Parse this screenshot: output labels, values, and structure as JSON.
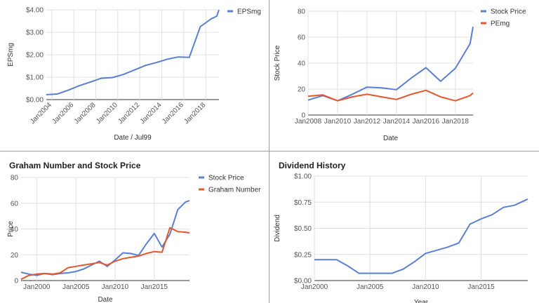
{
  "colors": {
    "blue": "#5b7fd3",
    "red": "#e4572e",
    "grid": "#e0e0e0",
    "axis": "#333333",
    "tick": "#555555"
  },
  "chart_data": [
    {
      "type": "line",
      "title": "",
      "xlabel": "Date / Jul99",
      "ylabel": "EPSmg",
      "legend": "right",
      "grid": true,
      "xlim": [
        2003.5,
        2019.2
      ],
      "ylim": [
        0,
        4
      ],
      "x_ticks": [
        2004,
        2006,
        2008,
        2010,
        2012,
        2014,
        2016,
        2018
      ],
      "x_tick_labels": [
        "Jan2004",
        "Jan2006",
        "Jan2008",
        "Jan2010",
        "Jan2012",
        "Jan2014",
        "Jan2016",
        "Jan2018"
      ],
      "y_ticks": [
        0,
        1,
        2,
        3,
        4
      ],
      "y_tick_labels": [
        "$0.00",
        "$1.00",
        "$2.00",
        "$3.00",
        "$4.00"
      ],
      "series": [
        {
          "name": "EPSmg",
          "color": "#5b7fd3",
          "x": [
            2003.5,
            2004.5,
            2005.5,
            2006.5,
            2007.5,
            2008.5,
            2009.5,
            2010.5,
            2011.5,
            2012.5,
            2013.5,
            2014.5,
            2015.5,
            2016.5,
            2017.5,
            2018.5,
            2019.0,
            2019.2
          ],
          "y": [
            0.22,
            0.25,
            0.42,
            0.62,
            0.78,
            0.95,
            0.98,
            1.12,
            1.32,
            1.52,
            1.65,
            1.8,
            1.9,
            1.88,
            3.25,
            3.6,
            3.72,
            4.0
          ]
        }
      ]
    },
    {
      "type": "line",
      "title": "",
      "xlabel": "Date",
      "ylabel": "Stock Price",
      "legend": "right",
      "grid": true,
      "xlim": [
        2008,
        2019.2
      ],
      "ylim": [
        0,
        80
      ],
      "x_ticks": [
        2008,
        2010,
        2012,
        2014,
        2016,
        2018
      ],
      "x_tick_labels": [
        "Jan2008",
        "Jan2010",
        "Jan2012",
        "Jan2014",
        "Jan2016",
        "Jan2018"
      ],
      "y_ticks": [
        0,
        20,
        40,
        60,
        80
      ],
      "y_tick_labels": [
        "0",
        "20",
        "40",
        "60",
        "80"
      ],
      "series": [
        {
          "name": "Stock Price",
          "color": "#5b7fd3",
          "x": [
            2008,
            2009,
            2010,
            2011,
            2012,
            2013,
            2014,
            2015,
            2016,
            2017,
            2018,
            2019,
            2019.2
          ],
          "y": [
            11.5,
            15,
            11,
            16,
            21.5,
            21,
            19.5,
            28.5,
            36.5,
            26,
            36,
            55,
            68
          ]
        },
        {
          "name": "PEmg",
          "color": "#e4572e",
          "x": [
            2008,
            2009,
            2010,
            2011,
            2012,
            2013,
            2014,
            2015,
            2016,
            2017,
            2018,
            2019,
            2019.2
          ],
          "y": [
            14.5,
            15.5,
            11,
            14,
            16,
            14,
            12,
            16,
            19,
            14,
            11,
            15,
            17
          ]
        }
      ]
    },
    {
      "type": "line",
      "title": "Graham Number and Stock Price",
      "xlabel": "Date",
      "ylabel": "Price",
      "legend": "right",
      "grid": true,
      "xlim": [
        1998,
        2019.5
      ],
      "ylim": [
        0,
        80
      ],
      "x_ticks": [
        2000,
        2005,
        2010,
        2015
      ],
      "x_tick_labels": [
        "Jan2000",
        "Jan2005",
        "Jan2010",
        "Jan2015"
      ],
      "y_ticks": [
        0,
        20,
        40,
        60,
        80
      ],
      "y_tick_labels": [
        "0",
        "20",
        "40",
        "60",
        "80"
      ],
      "series": [
        {
          "name": "Stock Price",
          "color": "#5b7fd3",
          "x": [
            1998,
            1999,
            2000,
            2001,
            2002,
            2003,
            2004,
            2005,
            2006,
            2007,
            2008,
            2009,
            2010,
            2011,
            2012,
            2013,
            2014,
            2015,
            2016,
            2017,
            2018,
            2019,
            2019.5
          ],
          "y": [
            6.5,
            5,
            4,
            5.5,
            4.5,
            5.5,
            6,
            7,
            9,
            12,
            15,
            11,
            16,
            21.5,
            21,
            19.5,
            28.5,
            36.5,
            26,
            36,
            55,
            61,
            62
          ]
        },
        {
          "name": "Graham Number",
          "color": "#e4572e",
          "x": [
            1998,
            1999,
            2000,
            2001,
            2002,
            2003,
            2004,
            2005,
            2006,
            2007,
            2008,
            2009,
            2010,
            2011,
            2012,
            2013,
            2014,
            2015,
            2016,
            2017,
            2018,
            2019,
            2019.5
          ],
          "y": [
            1,
            4,
            5,
            5.5,
            5,
            6,
            10,
            11,
            12,
            13,
            14,
            12,
            15,
            17,
            18,
            19,
            21,
            22.5,
            22,
            41,
            38,
            37.5,
            37
          ]
        }
      ]
    },
    {
      "type": "line",
      "title": "Dividend History",
      "xlabel": "Year",
      "ylabel": "Dividend",
      "legend": "none",
      "grid": true,
      "xlim": [
        2000,
        2019.2
      ],
      "ylim": [
        0,
        1
      ],
      "x_ticks": [
        2000,
        2005,
        2010,
        2015
      ],
      "x_tick_labels": [
        "Jan2000",
        "Jan2005",
        "Jan2010",
        "Jan2015"
      ],
      "y_ticks": [
        0,
        0.25,
        0.5,
        0.75,
        1
      ],
      "y_tick_labels": [
        "$0.00",
        "$0.25",
        "$0.50",
        "$0.75",
        "$1.00"
      ],
      "series": [
        {
          "name": "Dividend",
          "color": "#5b7fd3",
          "x": [
            2000,
            2001,
            2002,
            2003,
            2004,
            2005,
            2006,
            2007,
            2008,
            2009,
            2010,
            2011,
            2012,
            2013,
            2014,
            2015,
            2016,
            2017,
            2018,
            2019.2
          ],
          "y": [
            0.2,
            0.2,
            0.2,
            0.14,
            0.07,
            0.07,
            0.07,
            0.07,
            0.11,
            0.18,
            0.26,
            0.29,
            0.32,
            0.36,
            0.54,
            0.59,
            0.63,
            0.7,
            0.72,
            0.78
          ]
        }
      ]
    }
  ]
}
